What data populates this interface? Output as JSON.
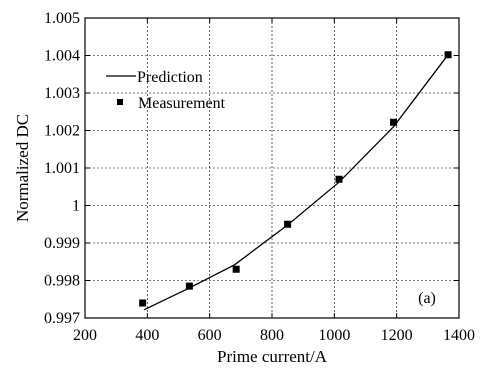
{
  "chart_data": {
    "type": "line",
    "xlabel": "Prime current/A",
    "ylabel": "Normalized DC",
    "xlim": [
      200,
      1400
    ],
    "ylim": [
      0.997,
      1.005
    ],
    "xticks": [
      200,
      400,
      600,
      800,
      1000,
      1200,
      1400
    ],
    "xtick_labels": [
      "200",
      "400",
      "600",
      "800",
      "1000",
      "1200",
      "1400"
    ],
    "yticks": [
      0.997,
      0.998,
      0.999,
      1.0,
      1.001,
      1.002,
      1.003,
      1.004,
      1.005
    ],
    "ytick_labels": [
      "0.997",
      "0.998",
      "0.999",
      "1",
      "1.001",
      "1.002",
      "1.003",
      "1.004",
      "1.005"
    ],
    "grid": true,
    "legend_position": "top-left",
    "annotation": "(a)",
    "series": [
      {
        "name": "Prediction",
        "style": "line",
        "color": "#000000",
        "x": [
          390,
          530,
          680,
          850,
          1015,
          1190,
          1365
        ],
        "y": [
          0.99722,
          0.99778,
          0.99842,
          0.99948,
          1.00062,
          1.0021,
          1.00402
        ]
      },
      {
        "name": "Measurement",
        "style": "marker",
        "marker": "square",
        "color": "#000000",
        "x": [
          385,
          535,
          685,
          850,
          1015,
          1190,
          1365
        ],
        "y": [
          0.9974,
          0.99785,
          0.9983,
          0.9995,
          1.0007,
          1.00222,
          1.00402
        ]
      }
    ]
  }
}
